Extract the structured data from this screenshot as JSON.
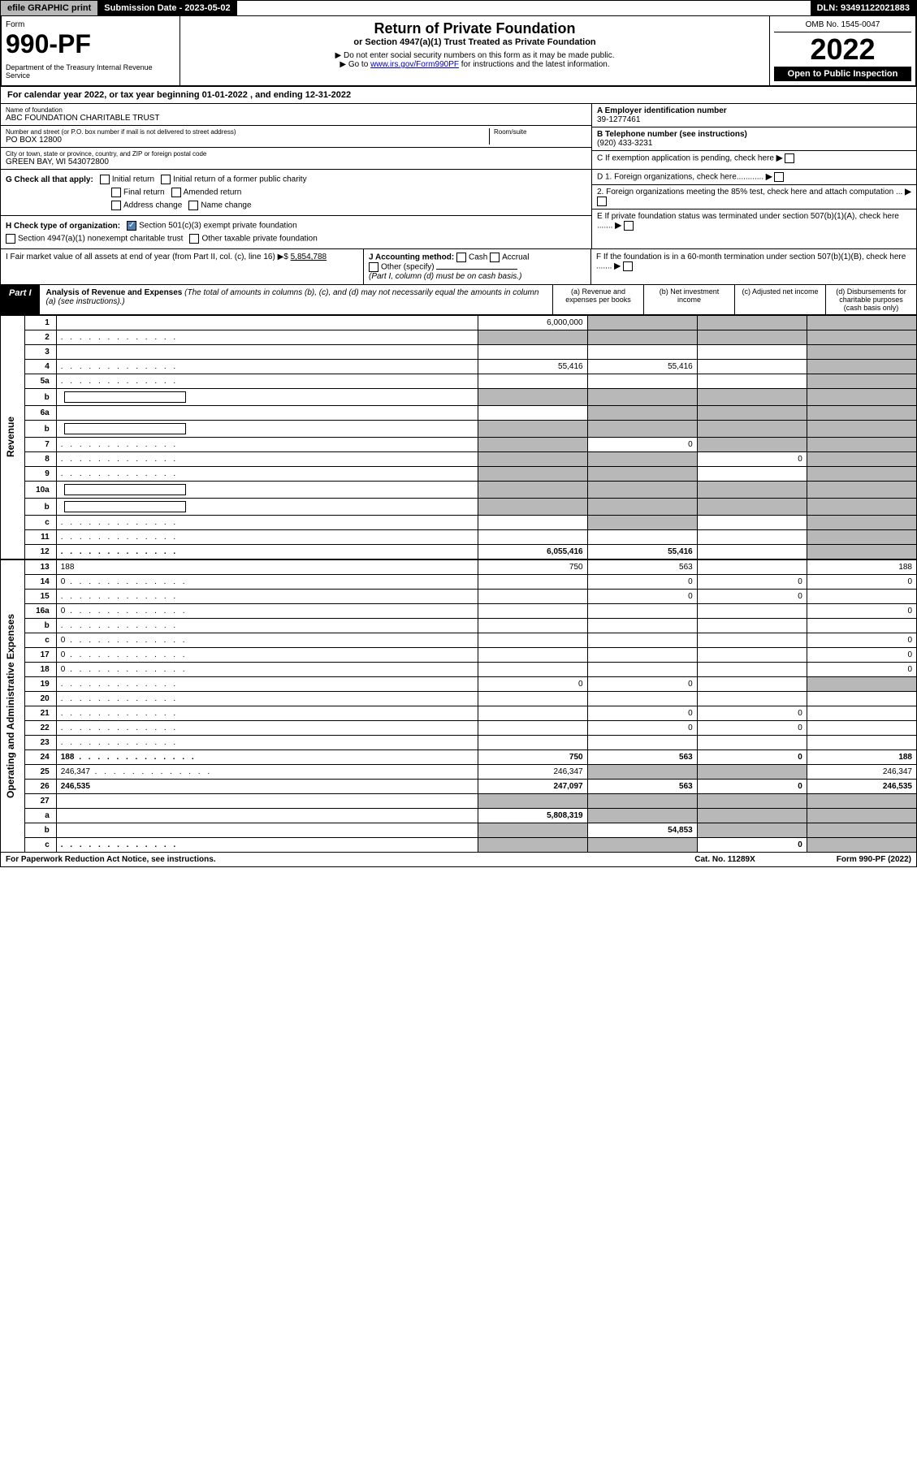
{
  "topbar": {
    "efile": "efile GRAPHIC print",
    "sub_label": "Submission Date - 2023-05-02",
    "dln": "DLN: 93491122021883"
  },
  "header": {
    "form_label": "Form",
    "form_number": "990-PF",
    "dept": "Department of the Treasury\nInternal Revenue Service",
    "title": "Return of Private Foundation",
    "subtitle": "or Section 4947(a)(1) Trust Treated as Private Foundation",
    "instr1": "▶ Do not enter social security numbers on this form as it may be made public.",
    "instr2": "▶ Go to ",
    "instr_link": "www.irs.gov/Form990PF",
    "instr3": " for instructions and the latest information.",
    "omb": "OMB No. 1545-0047",
    "year": "2022",
    "open": "Open to Public Inspection"
  },
  "cal_year": "For calendar year 2022, or tax year beginning 01-01-2022          , and ending 12-31-2022",
  "info": {
    "name_label": "Name of foundation",
    "name": "ABC FOUNDATION CHARITABLE TRUST",
    "addr_label": "Number and street (or P.O. box number if mail is not delivered to street address)",
    "addr": "PO BOX 12800",
    "room_label": "Room/suite",
    "city_label": "City or town, state or province, country, and ZIP or foreign postal code",
    "city": "GREEN BAY, WI  543072800",
    "ein_label": "A Employer identification number",
    "ein": "39-1277461",
    "phone_label": "B Telephone number (see instructions)",
    "phone": "(920) 433-3231",
    "c_label": "C If exemption application is pending, check here",
    "d1": "D 1. Foreign organizations, check here............",
    "d2": "2. Foreign organizations meeting the 85% test, check here and attach computation ...",
    "e": "E  If private foundation status was terminated under section 507(b)(1)(A), check here .......",
    "f": "F  If the foundation is in a 60-month termination under section 507(b)(1)(B), check here ......."
  },
  "checks": {
    "g_label": "G Check all that apply:",
    "initial": "Initial return",
    "initial_former": "Initial return of a former public charity",
    "final": "Final return",
    "amended": "Amended return",
    "address": "Address change",
    "name_change": "Name change",
    "h_label": "H Check type of organization:",
    "h_501c3": "Section 501(c)(3) exempt private foundation",
    "h_4947": "Section 4947(a)(1) nonexempt charitable trust",
    "h_other": "Other taxable private foundation",
    "i_label": "I Fair market value of all assets at end of year (from Part II, col. (c), line 16) ▶$",
    "i_value": "5,854,788",
    "j_label": "J Accounting method:",
    "j_cash": "Cash",
    "j_accrual": "Accrual",
    "j_other": "Other (specify)",
    "j_note": "(Part I, column (d) must be on cash basis.)"
  },
  "part1": {
    "label": "Part I",
    "title": "Analysis of Revenue and Expenses",
    "desc": "(The total of amounts in columns (b), (c), and (d) may not necessarily equal the amounts in column (a) (see instructions).)",
    "col_a": "(a) Revenue and expenses per books",
    "col_b": "(b) Net investment income",
    "col_c": "(c) Adjusted net income",
    "col_d": "(d) Disbursements for charitable purposes (cash basis only)"
  },
  "side_labels": {
    "revenue": "Revenue",
    "expenses": "Operating and Administrative Expenses"
  },
  "rows": [
    {
      "n": "1",
      "d": "",
      "a": "6,000,000",
      "b": "",
      "c": "",
      "b_shade": true,
      "c_shade": true,
      "d_shade": true
    },
    {
      "n": "2",
      "d": "",
      "a": "",
      "b": "",
      "c": "",
      "a_shade": true,
      "b_shade": true,
      "c_shade": true,
      "d_shade": true,
      "dots": true
    },
    {
      "n": "3",
      "d": "",
      "a": "",
      "b": "",
      "c": "",
      "d_shade": true
    },
    {
      "n": "4",
      "d": "",
      "a": "55,416",
      "b": "55,416",
      "c": "",
      "d_shade": true,
      "dots": true
    },
    {
      "n": "5a",
      "d": "",
      "a": "",
      "b": "",
      "c": "",
      "d_shade": true,
      "dots": true
    },
    {
      "n": "b",
      "d": "",
      "a": "",
      "b": "",
      "c": "",
      "a_shade": true,
      "b_shade": true,
      "c_shade": true,
      "d_shade": true,
      "has_box": true
    },
    {
      "n": "6a",
      "d": "",
      "a": "",
      "b": "",
      "c": "",
      "b_shade": true,
      "c_shade": true,
      "d_shade": true
    },
    {
      "n": "b",
      "d": "",
      "a": "",
      "b": "",
      "c": "",
      "a_shade": true,
      "b_shade": true,
      "c_shade": true,
      "d_shade": true,
      "has_box": true
    },
    {
      "n": "7",
      "d": "",
      "a": "",
      "b": "0",
      "c": "",
      "a_shade": true,
      "c_shade": true,
      "d_shade": true,
      "dots": true
    },
    {
      "n": "8",
      "d": "",
      "a": "",
      "b": "",
      "c": "0",
      "a_shade": true,
      "b_shade": true,
      "d_shade": true,
      "dots": true
    },
    {
      "n": "9",
      "d": "",
      "a": "",
      "b": "",
      "c": "",
      "a_shade": true,
      "b_shade": true,
      "d_shade": true,
      "dots": true
    },
    {
      "n": "10a",
      "d": "",
      "a": "",
      "b": "",
      "c": "",
      "a_shade": true,
      "b_shade": true,
      "c_shade": true,
      "d_shade": true,
      "has_box": true
    },
    {
      "n": "b",
      "d": "",
      "a": "",
      "b": "",
      "c": "",
      "a_shade": true,
      "b_shade": true,
      "c_shade": true,
      "d_shade": true,
      "has_box": true,
      "dots": true
    },
    {
      "n": "c",
      "d": "",
      "a": "",
      "b": "",
      "c": "",
      "b_shade": true,
      "d_shade": true,
      "dots": true
    },
    {
      "n": "11",
      "d": "",
      "a": "",
      "b": "",
      "c": "",
      "d_shade": true,
      "dots": true
    },
    {
      "n": "12",
      "d": "",
      "a": "6,055,416",
      "b": "55,416",
      "c": "",
      "d_shade": true,
      "bold": true,
      "dots": true
    }
  ],
  "exp_rows": [
    {
      "n": "13",
      "d": "188",
      "a": "750",
      "b": "563",
      "c": ""
    },
    {
      "n": "14",
      "d": "0",
      "a": "",
      "b": "0",
      "c": "0",
      "dots": true
    },
    {
      "n": "15",
      "d": "",
      "a": "",
      "b": "0",
      "c": "0",
      "dots": true
    },
    {
      "n": "16a",
      "d": "0",
      "a": "",
      "b": "",
      "c": "",
      "dots": true
    },
    {
      "n": "b",
      "d": "",
      "a": "",
      "b": "",
      "c": "",
      "dots": true
    },
    {
      "n": "c",
      "d": "0",
      "a": "",
      "b": "",
      "c": "",
      "dots": true
    },
    {
      "n": "17",
      "d": "0",
      "a": "",
      "b": "",
      "c": "",
      "dots": true
    },
    {
      "n": "18",
      "d": "0",
      "a": "",
      "b": "",
      "c": "",
      "dots": true
    },
    {
      "n": "19",
      "d": "",
      "a": "0",
      "b": "0",
      "c": "",
      "d_shade": true,
      "dots": true
    },
    {
      "n": "20",
      "d": "",
      "a": "",
      "b": "",
      "c": "",
      "dots": true
    },
    {
      "n": "21",
      "d": "",
      "a": "",
      "b": "0",
      "c": "0",
      "dots": true
    },
    {
      "n": "22",
      "d": "",
      "a": "",
      "b": "0",
      "c": "0",
      "dots": true
    },
    {
      "n": "23",
      "d": "",
      "a": "",
      "b": "",
      "c": "",
      "dots": true
    },
    {
      "n": "24",
      "d": "188",
      "a": "750",
      "b": "563",
      "c": "0",
      "bold": true,
      "dots": true
    },
    {
      "n": "25",
      "d": "246,347",
      "a": "246,347",
      "b": "",
      "c": "",
      "b_shade": true,
      "c_shade": true,
      "dots": true
    },
    {
      "n": "26",
      "d": "246,535",
      "a": "247,097",
      "b": "563",
      "c": "0",
      "bold": true
    },
    {
      "n": "27",
      "d": "",
      "a": "",
      "b": "",
      "c": "",
      "a_shade": true,
      "b_shade": true,
      "c_shade": true,
      "d_shade": true
    },
    {
      "n": "a",
      "d": "",
      "a": "5,808,319",
      "b": "",
      "c": "",
      "b_shade": true,
      "c_shade": true,
      "d_shade": true,
      "bold": true
    },
    {
      "n": "b",
      "d": "",
      "a": "",
      "b": "54,853",
      "c": "",
      "a_shade": true,
      "c_shade": true,
      "d_shade": true,
      "bold": true
    },
    {
      "n": "c",
      "d": "",
      "a": "",
      "b": "",
      "c": "0",
      "a_shade": true,
      "b_shade": true,
      "d_shade": true,
      "bold": true,
      "dots": true
    }
  ],
  "footer": {
    "left": "For Paperwork Reduction Act Notice, see instructions.",
    "mid": "Cat. No. 11289X",
    "right": "Form 990-PF (2022)"
  }
}
